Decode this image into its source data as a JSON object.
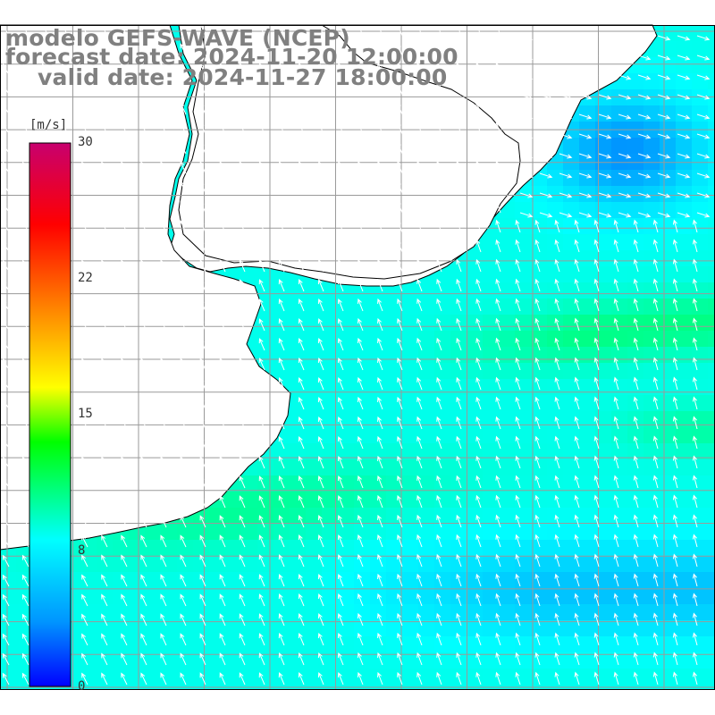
{
  "header": {
    "line1": "modelo GEFS-WAVE (NCEP)",
    "line2": "forecast date: 2024-11-20 12:00:00",
    "line3": "valid date: 2024-11-27 18:00:00"
  },
  "colorbar": {
    "unit": "[m/s]",
    "ticks": [
      "30",
      "22",
      "15",
      "8",
      "0"
    ],
    "values": [
      30,
      22,
      15,
      8,
      0
    ],
    "min": 0,
    "max": 30,
    "stops": [
      "#0000ff",
      "#0096ff",
      "#00ffff",
      "#00ff00",
      "#ffff00",
      "#ff8000",
      "#ff0000",
      "#c8006e"
    ]
  },
  "map": {
    "variable": "wind speed with direction arrows",
    "land_color": "#ffffff",
    "grid_color": "#9a9a9a",
    "arrow_color": "#ffffff"
  }
}
